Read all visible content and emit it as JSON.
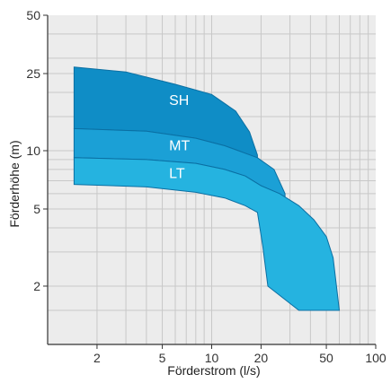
{
  "chart_data": {
    "type": "area",
    "xlabel": "Förderstrom (l/s)",
    "ylabel": "Förderhöhe (m)",
    "x_scale": "log",
    "y_scale": "log",
    "xlim": [
      1,
      100
    ],
    "ylim": [
      1,
      50
    ],
    "x_ticks": [
      2,
      5,
      10,
      20,
      50,
      100
    ],
    "y_ticks": [
      2,
      5,
      10,
      25,
      50
    ],
    "grid": true,
    "series": [
      {
        "name": "SH",
        "color": "#0f8dc6",
        "upper": [
          [
            1.45,
            27
          ],
          [
            3,
            25.5
          ],
          [
            6,
            22
          ],
          [
            10,
            19.5
          ],
          [
            14,
            16
          ],
          [
            17,
            12.5
          ],
          [
            19,
            9.5
          ]
        ],
        "lower": [
          [
            1.45,
            13
          ],
          [
            4,
            12.6
          ],
          [
            8,
            11.6
          ],
          [
            12,
            10.6
          ],
          [
            15,
            9.9
          ],
          [
            18,
            8.6
          ],
          [
            19,
            8.2
          ]
        ]
      },
      {
        "name": "MT",
        "color": "#1ba0d6",
        "upper": [
          [
            1.45,
            13
          ],
          [
            4,
            12.6
          ],
          [
            8,
            11.6
          ],
          [
            12,
            10.6
          ],
          [
            15,
            9.9
          ],
          [
            19,
            9.2
          ],
          [
            24,
            8.0
          ],
          [
            28,
            6.0
          ]
        ],
        "lower": [
          [
            1.45,
            9.2
          ],
          [
            4,
            9.0
          ],
          [
            8,
            8.6
          ],
          [
            12,
            8.0
          ],
          [
            16,
            7.4
          ],
          [
            20,
            6.6
          ],
          [
            24,
            5.9
          ],
          [
            28,
            5.7
          ]
        ]
      },
      {
        "name": "LT",
        "color": "#25b3e0",
        "upper": [
          [
            1.45,
            9.2
          ],
          [
            4,
            9.0
          ],
          [
            8,
            8.6
          ],
          [
            12,
            8.0
          ],
          [
            16,
            7.4
          ],
          [
            20,
            6.6
          ],
          [
            26,
            6.0
          ],
          [
            34,
            5.2
          ],
          [
            42,
            4.4
          ],
          [
            50,
            3.6
          ],
          [
            55,
            2.8
          ],
          [
            60,
            1.5
          ]
        ],
        "lower": [
          [
            1.45,
            6.7
          ],
          [
            4,
            6.5
          ],
          [
            8,
            6.1
          ],
          [
            12,
            5.7
          ],
          [
            16,
            5.2
          ],
          [
            19,
            4.8
          ],
          [
            20.5,
            3.2
          ],
          [
            22,
            2.0
          ],
          [
            34,
            1.5
          ],
          [
            60,
            1.5
          ]
        ]
      }
    ]
  }
}
